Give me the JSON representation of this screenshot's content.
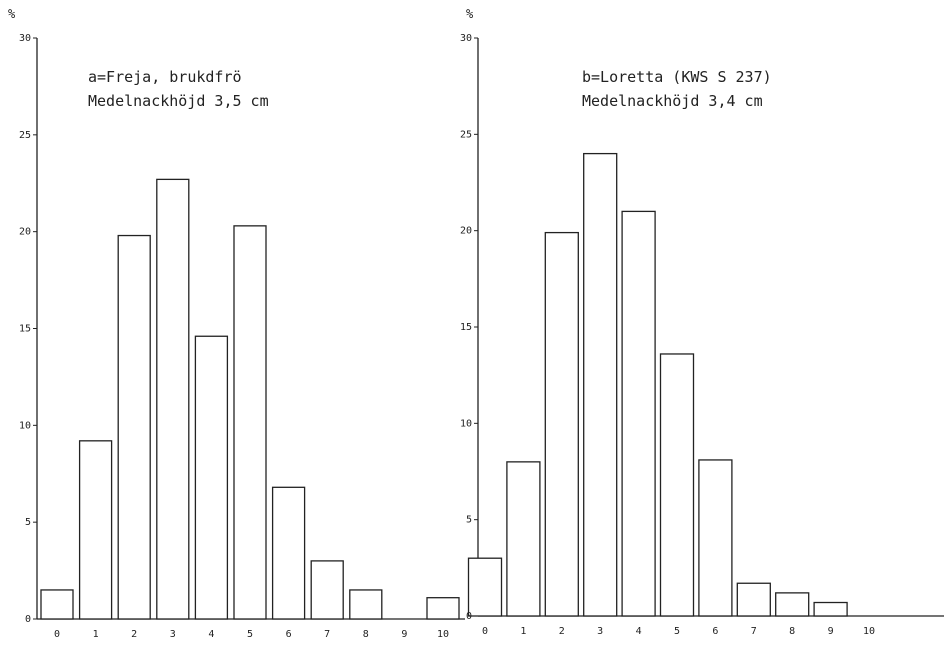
{
  "chart_data": [
    {
      "type": "bar",
      "ylabel": "%",
      "ylim": [
        0,
        30
      ],
      "yticks": [
        "0",
        "5",
        "10",
        "15",
        "20",
        "25",
        "30"
      ],
      "categories": [
        "0",
        "1",
        "2",
        "3",
        "4",
        "5",
        "6",
        "7",
        "8",
        "9",
        "10"
      ],
      "values": [
        1.5,
        9.2,
        19.8,
        22.7,
        14.6,
        20.3,
        6.8,
        3.0,
        1.5,
        0,
        1.1
      ],
      "annotation_line1": "a=Freja, brukdfrö",
      "annotation_line2": "Medelnackhöjd 3,5 cm",
      "grid": false
    },
    {
      "type": "bar",
      "ylabel": "%",
      "ylim": [
        0,
        30
      ],
      "yticks": [
        "0",
        "5",
        "10",
        "15",
        "20",
        "25",
        "30"
      ],
      "categories": [
        "0",
        "1",
        "2",
        "3",
        "4",
        "5",
        "6",
        "7",
        "8",
        "9",
        "10"
      ],
      "values": [
        3.0,
        8.0,
        19.9,
        24.0,
        21.0,
        13.6,
        8.1,
        1.7,
        1.2,
        0.7,
        0
      ],
      "annotation_line1": "b=Loretta (KWS S 237)",
      "annotation_line2": "Medelnackhöjd 3,4 cm",
      "grid": false
    }
  ],
  "colors": {
    "stroke": "#222222",
    "fill": "#ffffff"
  }
}
